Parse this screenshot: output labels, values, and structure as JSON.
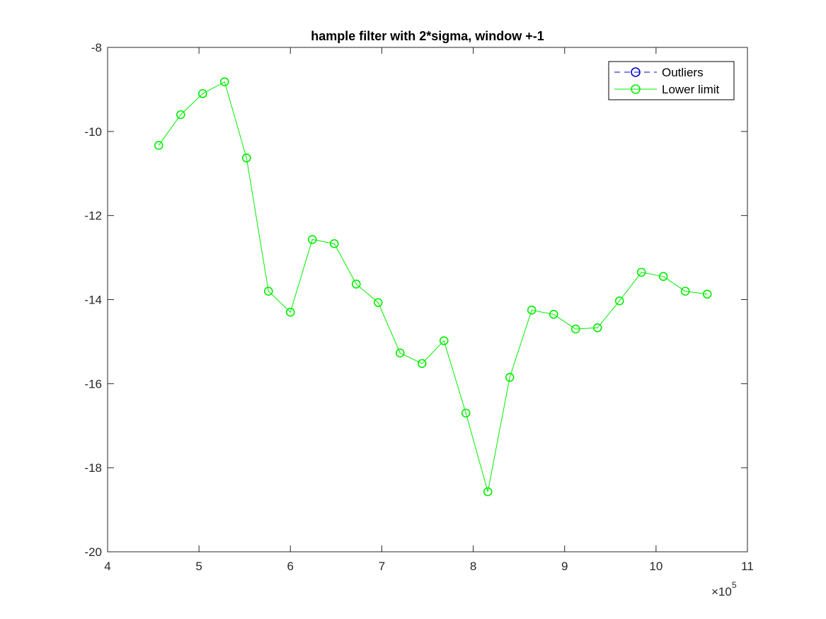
{
  "chart_data": {
    "type": "line",
    "title": "hample filter with 2*sigma, window +-1",
    "xlabel": "",
    "ylabel": "",
    "xlim": [
      4,
      11
    ],
    "ylim": [
      -20,
      -8
    ],
    "x_ticks": [
      "4",
      "5",
      "6",
      "7",
      "8",
      "9",
      "10",
      "11"
    ],
    "y_ticks": [
      "-8",
      "-10",
      "-12",
      "-14",
      "-16",
      "-18",
      "-20"
    ],
    "x_tick_values": [
      4,
      5,
      6,
      7,
      8,
      9,
      10,
      11
    ],
    "y_tick_values": [
      -8,
      -10,
      -12,
      -14,
      -16,
      -18,
      -20
    ],
    "x_exponent_base": "×10",
    "x_exponent_power": "5",
    "grid": false,
    "legend_position": "top-right",
    "series": [
      {
        "name": "Outliers",
        "color": "#0000cc",
        "line_style": "dashed",
        "marker": "circle",
        "x": [],
        "y": []
      },
      {
        "name": "Lower limit",
        "color": "#00ee00",
        "line_style": "solid",
        "marker": "circle",
        "x": [
          4.56,
          4.8,
          5.04,
          5.28,
          5.52,
          5.76,
          6.0,
          6.24,
          6.48,
          6.72,
          6.96,
          7.2,
          7.44,
          7.68,
          7.92,
          8.16,
          8.4,
          8.64,
          8.88,
          9.12,
          9.36,
          9.6,
          9.84,
          10.08,
          10.32,
          10.56
        ],
        "y": [
          -10.33,
          -9.6,
          -9.1,
          -8.82,
          -10.63,
          -13.8,
          -14.3,
          -12.57,
          -12.67,
          -13.63,
          -14.07,
          -15.27,
          -15.52,
          -14.98,
          -16.7,
          -18.57,
          -15.85,
          -14.25,
          -14.35,
          -14.7,
          -14.67,
          -14.03,
          -13.35,
          -13.45,
          -13.8,
          -13.87
        ]
      }
    ]
  }
}
